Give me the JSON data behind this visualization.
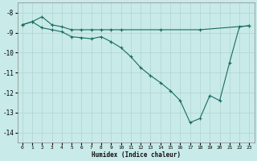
{
  "title": "",
  "xlabel": "Humidex (Indice chaleur)",
  "bg_color": "#c8eae8",
  "grid_color": "#b0d4d0",
  "line_color": "#1a6b60",
  "xlim": [
    -0.5,
    23.5
  ],
  "ylim": [
    -14.5,
    -7.5
  ],
  "yticks": [
    -14,
    -13,
    -12,
    -11,
    -10,
    -9,
    -8
  ],
  "xticks": [
    0,
    1,
    2,
    3,
    4,
    5,
    6,
    7,
    8,
    9,
    10,
    11,
    12,
    13,
    14,
    15,
    16,
    17,
    18,
    19,
    20,
    21,
    22,
    23
  ],
  "line1_x": [
    0,
    1,
    2,
    3,
    4,
    5,
    6,
    7,
    8,
    9,
    10,
    11,
    12,
    13,
    14,
    15,
    16,
    17,
    18,
    19,
    20,
    21,
    22,
    23
  ],
  "line1_y": [
    -8.6,
    -8.45,
    -8.75,
    -8.85,
    -8.95,
    -9.2,
    -9.25,
    -9.3,
    -9.2,
    -9.45,
    -9.75,
    -10.2,
    -10.75,
    -11.15,
    -11.5,
    -11.9,
    -12.4,
    -13.5,
    -13.3,
    -12.15,
    -12.4,
    -10.5,
    -8.7,
    -8.65
  ],
  "line2_x": [
    0,
    1,
    2,
    3,
    4,
    5,
    6,
    7,
    8,
    9,
    10,
    14,
    18,
    23
  ],
  "line2_y": [
    -8.6,
    -8.45,
    -8.2,
    -8.6,
    -8.7,
    -8.85,
    -8.85,
    -8.85,
    -8.85,
    -8.85,
    -8.85,
    -8.85,
    -8.85,
    -8.65
  ]
}
